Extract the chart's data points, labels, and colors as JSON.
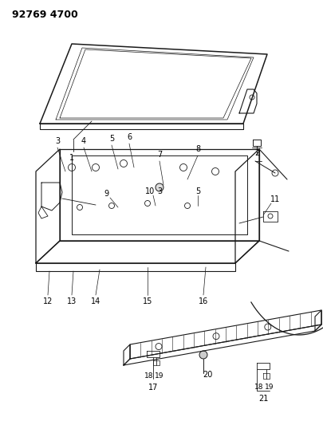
{
  "title": "92769 4700",
  "bg_color": "#ffffff",
  "line_color": "#1a1a1a",
  "title_fontsize": 9,
  "label_fontsize": 7,
  "fig_width": 4.05,
  "fig_height": 5.33,
  "dpi": 100
}
